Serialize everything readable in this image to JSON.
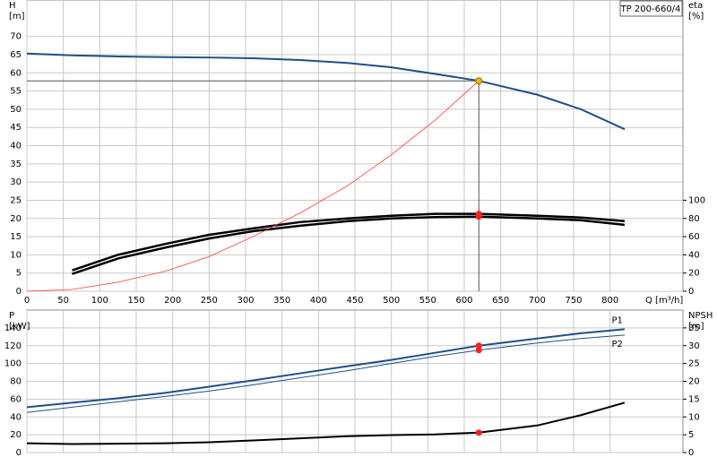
{
  "chart_data": [
    {
      "type": "line",
      "product": "TP 200-660/4",
      "y_label": "H",
      "y_unit": "[m]",
      "y2_label": "eta",
      "y2_unit": "[%]",
      "x_label": "Q [m³/h]",
      "xlim": [
        0,
        900
      ],
      "xticks": [
        0,
        50,
        100,
        150,
        200,
        250,
        300,
        350,
        400,
        450,
        500,
        550,
        600,
        650,
        700,
        750,
        800
      ],
      "ylim": [
        0,
        80
      ],
      "yticks": [
        0,
        5,
        10,
        15,
        20,
        25,
        30,
        35,
        40,
        45,
        50,
        55,
        60,
        65,
        70
      ],
      "y2lim": [
        0,
        320
      ],
      "y2ticks": [
        0,
        20,
        40,
        60,
        80,
        100
      ],
      "grid": true,
      "series": [
        {
          "color": "#1f4e8c",
          "width": 2,
          "x": [
            0,
            62,
            125,
            190,
            250,
            310,
            375,
            440,
            500,
            560,
            620,
            700,
            760,
            820
          ],
          "values": [
            65.3,
            64.8,
            64.5,
            64.3,
            64.2,
            64,
            63.5,
            62.7,
            61.5,
            59.7,
            57.8,
            54,
            50,
            44.5
          ]
        },
        {
          "color": "#000000",
          "width": 2.5,
          "axis": "y2",
          "x": [
            62,
            125,
            190,
            250,
            310,
            375,
            440,
            500,
            560,
            620,
            700,
            760,
            820
          ],
          "values": [
            23,
            40,
            52,
            62,
            69,
            76,
            80,
            83,
            85,
            85,
            83,
            81,
            77
          ]
        },
        {
          "color": "#000000",
          "width": 2.5,
          "axis": "y2",
          "x": [
            62,
            125,
            190,
            250,
            310,
            375,
            440,
            500,
            560,
            620,
            700,
            760,
            820
          ],
          "values": [
            19,
            36,
            48,
            58,
            66,
            72,
            77,
            80,
            81.5,
            82,
            80,
            78,
            73
          ]
        },
        {
          "color": "#ff3b3b",
          "width": 0.8,
          "x": [
            0,
            62,
            125,
            190,
            250,
            310,
            375,
            440,
            500,
            560,
            620
          ],
          "values": [
            0,
            0.5,
            2.5,
            5.5,
            9.5,
            15,
            21.5,
            29,
            37.5,
            47,
            57.8
          ]
        }
      ],
      "markers": [
        {
          "x": 620,
          "y": 57.8,
          "color": "#f5b800",
          "guides": true
        },
        {
          "x": 620,
          "y": 85,
          "axis": "y2",
          "color": "#ff2020"
        },
        {
          "x": 620,
          "y": 82,
          "axis": "y2",
          "color": "#ff2020"
        }
      ]
    },
    {
      "type": "line",
      "y_label": "P",
      "y_unit": "[kW]",
      "y2_label": "NPSH",
      "y2_unit": "[m]",
      "xlim": [
        0,
        900
      ],
      "xticks": [
        0,
        50,
        100,
        150,
        200,
        250,
        300,
        350,
        400,
        450,
        500,
        550,
        600,
        650,
        700,
        750,
        800
      ],
      "ylim": [
        0,
        160
      ],
      "yticks": [
        0,
        20,
        40,
        60,
        80,
        100,
        120,
        140
      ],
      "y2lim": [
        0,
        40
      ],
      "y2ticks": [
        0,
        5,
        10,
        15,
        20,
        25,
        30,
        35
      ],
      "grid": true,
      "series": [
        {
          "name": "P1",
          "color": "#1f4e8c",
          "width": 2,
          "x": [
            0,
            62,
            125,
            190,
            250,
            310,
            375,
            440,
            500,
            560,
            620,
            700,
            760,
            820
          ],
          "values": [
            51,
            56,
            61,
            67,
            74,
            81,
            89,
            97,
            104,
            112,
            120,
            128,
            134,
            138.5
          ]
        },
        {
          "name": "P2",
          "color": "#1f4e8c",
          "width": 1,
          "x": [
            0,
            62,
            125,
            190,
            250,
            310,
            375,
            440,
            500,
            560,
            620,
            700,
            760,
            820
          ],
          "values": [
            45,
            51,
            57,
            63,
            69,
            76,
            84,
            92,
            100,
            108,
            115,
            123,
            128,
            132
          ]
        },
        {
          "color": "#000000",
          "width": 2,
          "axis": "y2",
          "x": [
            0,
            62,
            190,
            250,
            310,
            375,
            440,
            500,
            560,
            620,
            700,
            760,
            820
          ],
          "values": [
            2.6,
            2.4,
            2.6,
            2.9,
            3.4,
            4,
            4.6,
            4.9,
            5.1,
            5.6,
            7.6,
            10.5,
            14
          ]
        }
      ],
      "markers": [
        {
          "x": 620,
          "y": 120,
          "color": "#ff2020"
        },
        {
          "x": 620,
          "y": 115,
          "color": "#ff2020"
        },
        {
          "x": 620,
          "y": 5.6,
          "axis": "y2",
          "color": "#ff2020"
        }
      ]
    }
  ]
}
